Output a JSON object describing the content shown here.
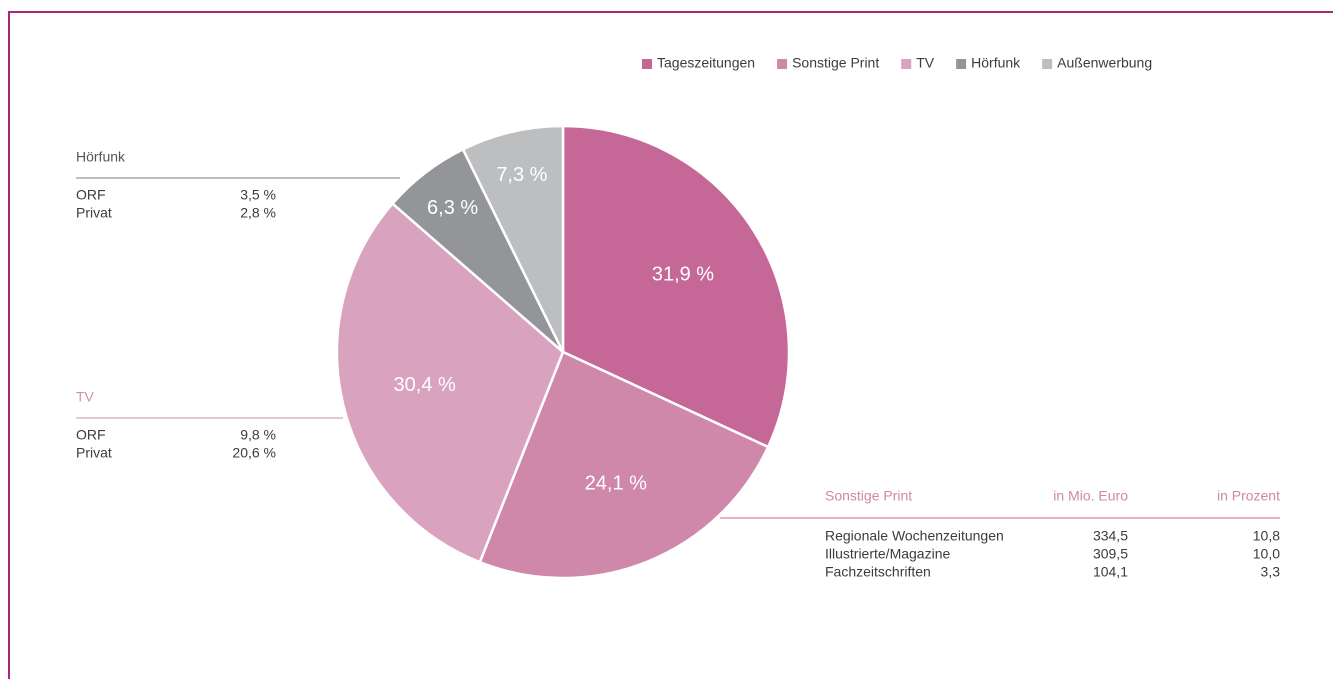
{
  "chart_data": {
    "type": "pie",
    "categories": [
      "Tageszeitungen",
      "Sonstige Print",
      "TV",
      "Hörfunk",
      "Außenwerbung"
    ],
    "values": [
      31.9,
      24.1,
      30.4,
      6.3,
      7.3
    ],
    "value_labels": [
      "31,9 %",
      "24,1 %",
      "30,4 %",
      "6,3 %",
      "7,3 %"
    ],
    "colors": [
      "#c66897",
      "#cf87aa",
      "#d9a2bf",
      "#939598",
      "#bcbec0"
    ],
    "legend": "top-right",
    "breakdowns": [
      {
        "title": "Hörfunk",
        "rows": [
          [
            "ORF",
            "3,5 %"
          ],
          [
            "Privat",
            "2,8 %"
          ]
        ]
      },
      {
        "title": "TV",
        "rows": [
          [
            "ORF",
            "9,8 %"
          ],
          [
            "Privat",
            "20,6 %"
          ]
        ]
      }
    ],
    "table": {
      "header": [
        "Sonstige Print",
        "in Mio. Euro",
        "in Prozent"
      ],
      "rows": [
        [
          "Regionale Wochenzeitungen",
          "334,5",
          "10,8"
        ],
        [
          "Illustrierte/Magazine",
          "309,5",
          "10,0"
        ],
        [
          "Fachzeitschriften",
          "104,1",
          "3,3"
        ]
      ]
    }
  }
}
